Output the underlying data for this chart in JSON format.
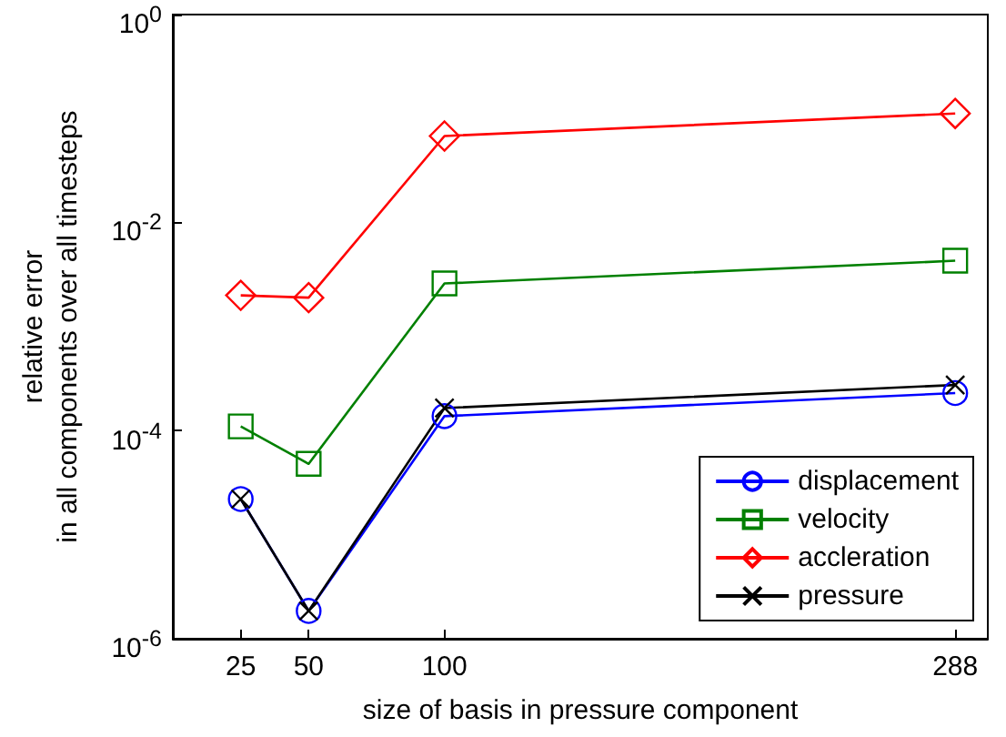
{
  "chart_data": {
    "type": "line",
    "xlabel": "size of basis in pressure component",
    "ylabel": "relative error\nin all components over all timesteps",
    "x": [
      25,
      50,
      100,
      288
    ],
    "series": [
      {
        "name": "displacement",
        "color": "#0000ff",
        "marker": "circle",
        "values": [
          2.2e-05,
          1.85e-06,
          0.000138,
          0.00023
        ]
      },
      {
        "name": "velocity",
        "color": "#008000",
        "marker": "square",
        "values": [
          0.00011,
          4.8e-05,
          0.0026,
          0.0043
        ]
      },
      {
        "name": "accleration",
        "color": "#ff0000",
        "marker": "diamond",
        "values": [
          0.002,
          0.0019,
          0.068,
          0.112
        ]
      },
      {
        "name": "pressure",
        "color": "#000000",
        "marker": "cross",
        "values": [
          2.2e-05,
          1.85e-06,
          0.000165,
          0.000275
        ]
      }
    ],
    "log": "y",
    "xlim": [
      0,
      300
    ],
    "xticks": [
      25,
      50,
      100,
      288
    ],
    "ylim": [
      1e-06,
      1
    ],
    "yticks": [
      {
        "value": 1e-06,
        "label": "10$^{-6}$"
      },
      {
        "value": 0.0001,
        "label": "10$^{-4}$"
      },
      {
        "value": 0.01,
        "label": "10$^{-2}$"
      },
      {
        "value": 1,
        "label": "10$^{0}$"
      }
    ],
    "grid": false,
    "legend": "bottom right",
    "line_style": "solid"
  }
}
